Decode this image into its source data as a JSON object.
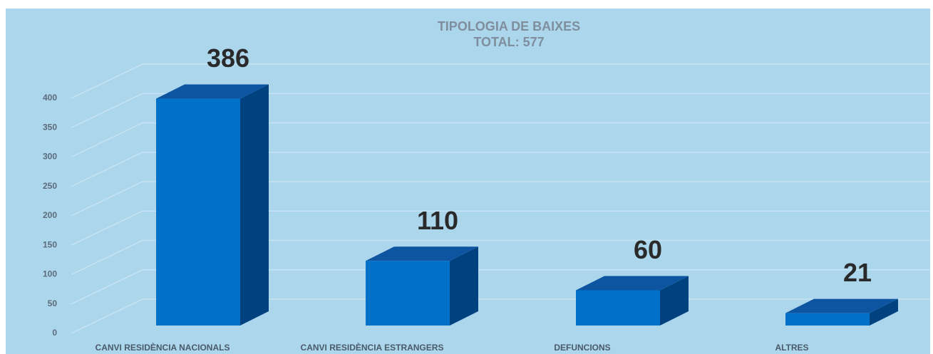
{
  "chart_data": {
    "type": "bar3d",
    "title": "TIPOLOGIA DE BAIXES",
    "subtitle": "TOTAL: 577",
    "categories": [
      "CANVI RESIDÈNCIA NACIONALS",
      "CANVI RESIDÈNCIA ESTRANGERS",
      "DEFUNCIONS",
      "ALTRES"
    ],
    "values": [
      386,
      110,
      60,
      21
    ],
    "color": "#0070c8",
    "ylim": [
      0,
      400
    ],
    "yticks": [
      0,
      50,
      100,
      150,
      200,
      250,
      300,
      350,
      400
    ],
    "grid": true
  }
}
